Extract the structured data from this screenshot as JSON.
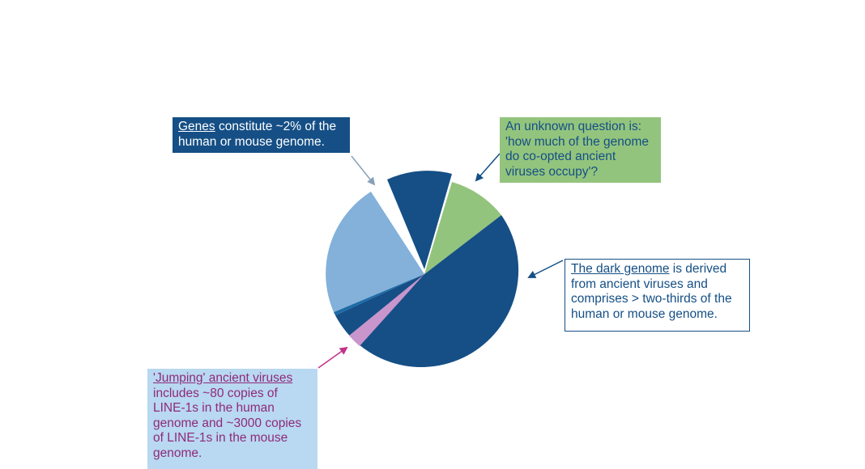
{
  "callouts": {
    "genes": {
      "title": "Genes",
      "rest": " constitute ~2% of the human or mouse genome."
    },
    "question": {
      "text": "An unknown question is: 'how much of the genome do co-opted ancient viruses occupy'?"
    },
    "dark": {
      "title": "The dark genome",
      "rest": " is derived from ancient viruses and comprises > two-thirds of the human or mouse genome."
    },
    "jumping": {
      "title": "'Jumping' ancient viruses",
      "rest": " includes ~80 copies of LINE-1s in the human genome and ~3000 copies of LINE-1s in the mouse genome."
    }
  },
  "colors": {
    "dark_blue": "#154f86",
    "light_blue": "#83b1da",
    "green": "#93c47d",
    "purple": "#c896cc",
    "arrow_grey": "#8aa0b8",
    "arrow_magenta": "#c0338a"
  }
}
